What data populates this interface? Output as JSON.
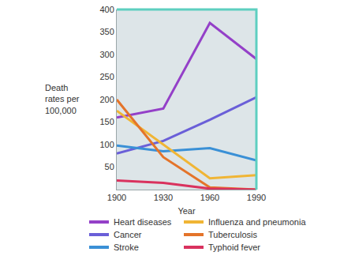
{
  "chart_data": {
    "type": "line",
    "x_label": "Year",
    "y_label": "Death rates per 100,000",
    "x": [
      1900,
      1930,
      1960,
      1990
    ],
    "series": [
      {
        "name": "Heart diseases",
        "color": "#9440c8",
        "values": [
          160,
          180,
          370,
          290
        ]
      },
      {
        "name": "Cancer",
        "color": "#6a5fd8",
        "values": [
          80,
          108,
          155,
          205
        ]
      },
      {
        "name": "Stroke",
        "color": "#3a90d6",
        "values": [
          98,
          85,
          92,
          65
        ]
      },
      {
        "name": "Influenza and pneumonia",
        "color": "#f0b535",
        "values": [
          175,
          100,
          25,
          32
        ]
      },
      {
        "name": "Tuberculosis",
        "color": "#e4742a",
        "values": [
          200,
          72,
          5,
          0
        ]
      },
      {
        "name": "Typhoid fever",
        "color": "#d9325e",
        "values": [
          20,
          15,
          2,
          0
        ]
      }
    ],
    "xlim": [
      1900,
      1990
    ],
    "ylim": [
      0,
      400
    ],
    "xticks": [
      1900,
      1930,
      1960,
      1990
    ],
    "yticks": [
      50,
      100,
      150,
      200,
      250,
      300,
      350,
      400
    ],
    "grid": false,
    "legend": "bottom"
  }
}
